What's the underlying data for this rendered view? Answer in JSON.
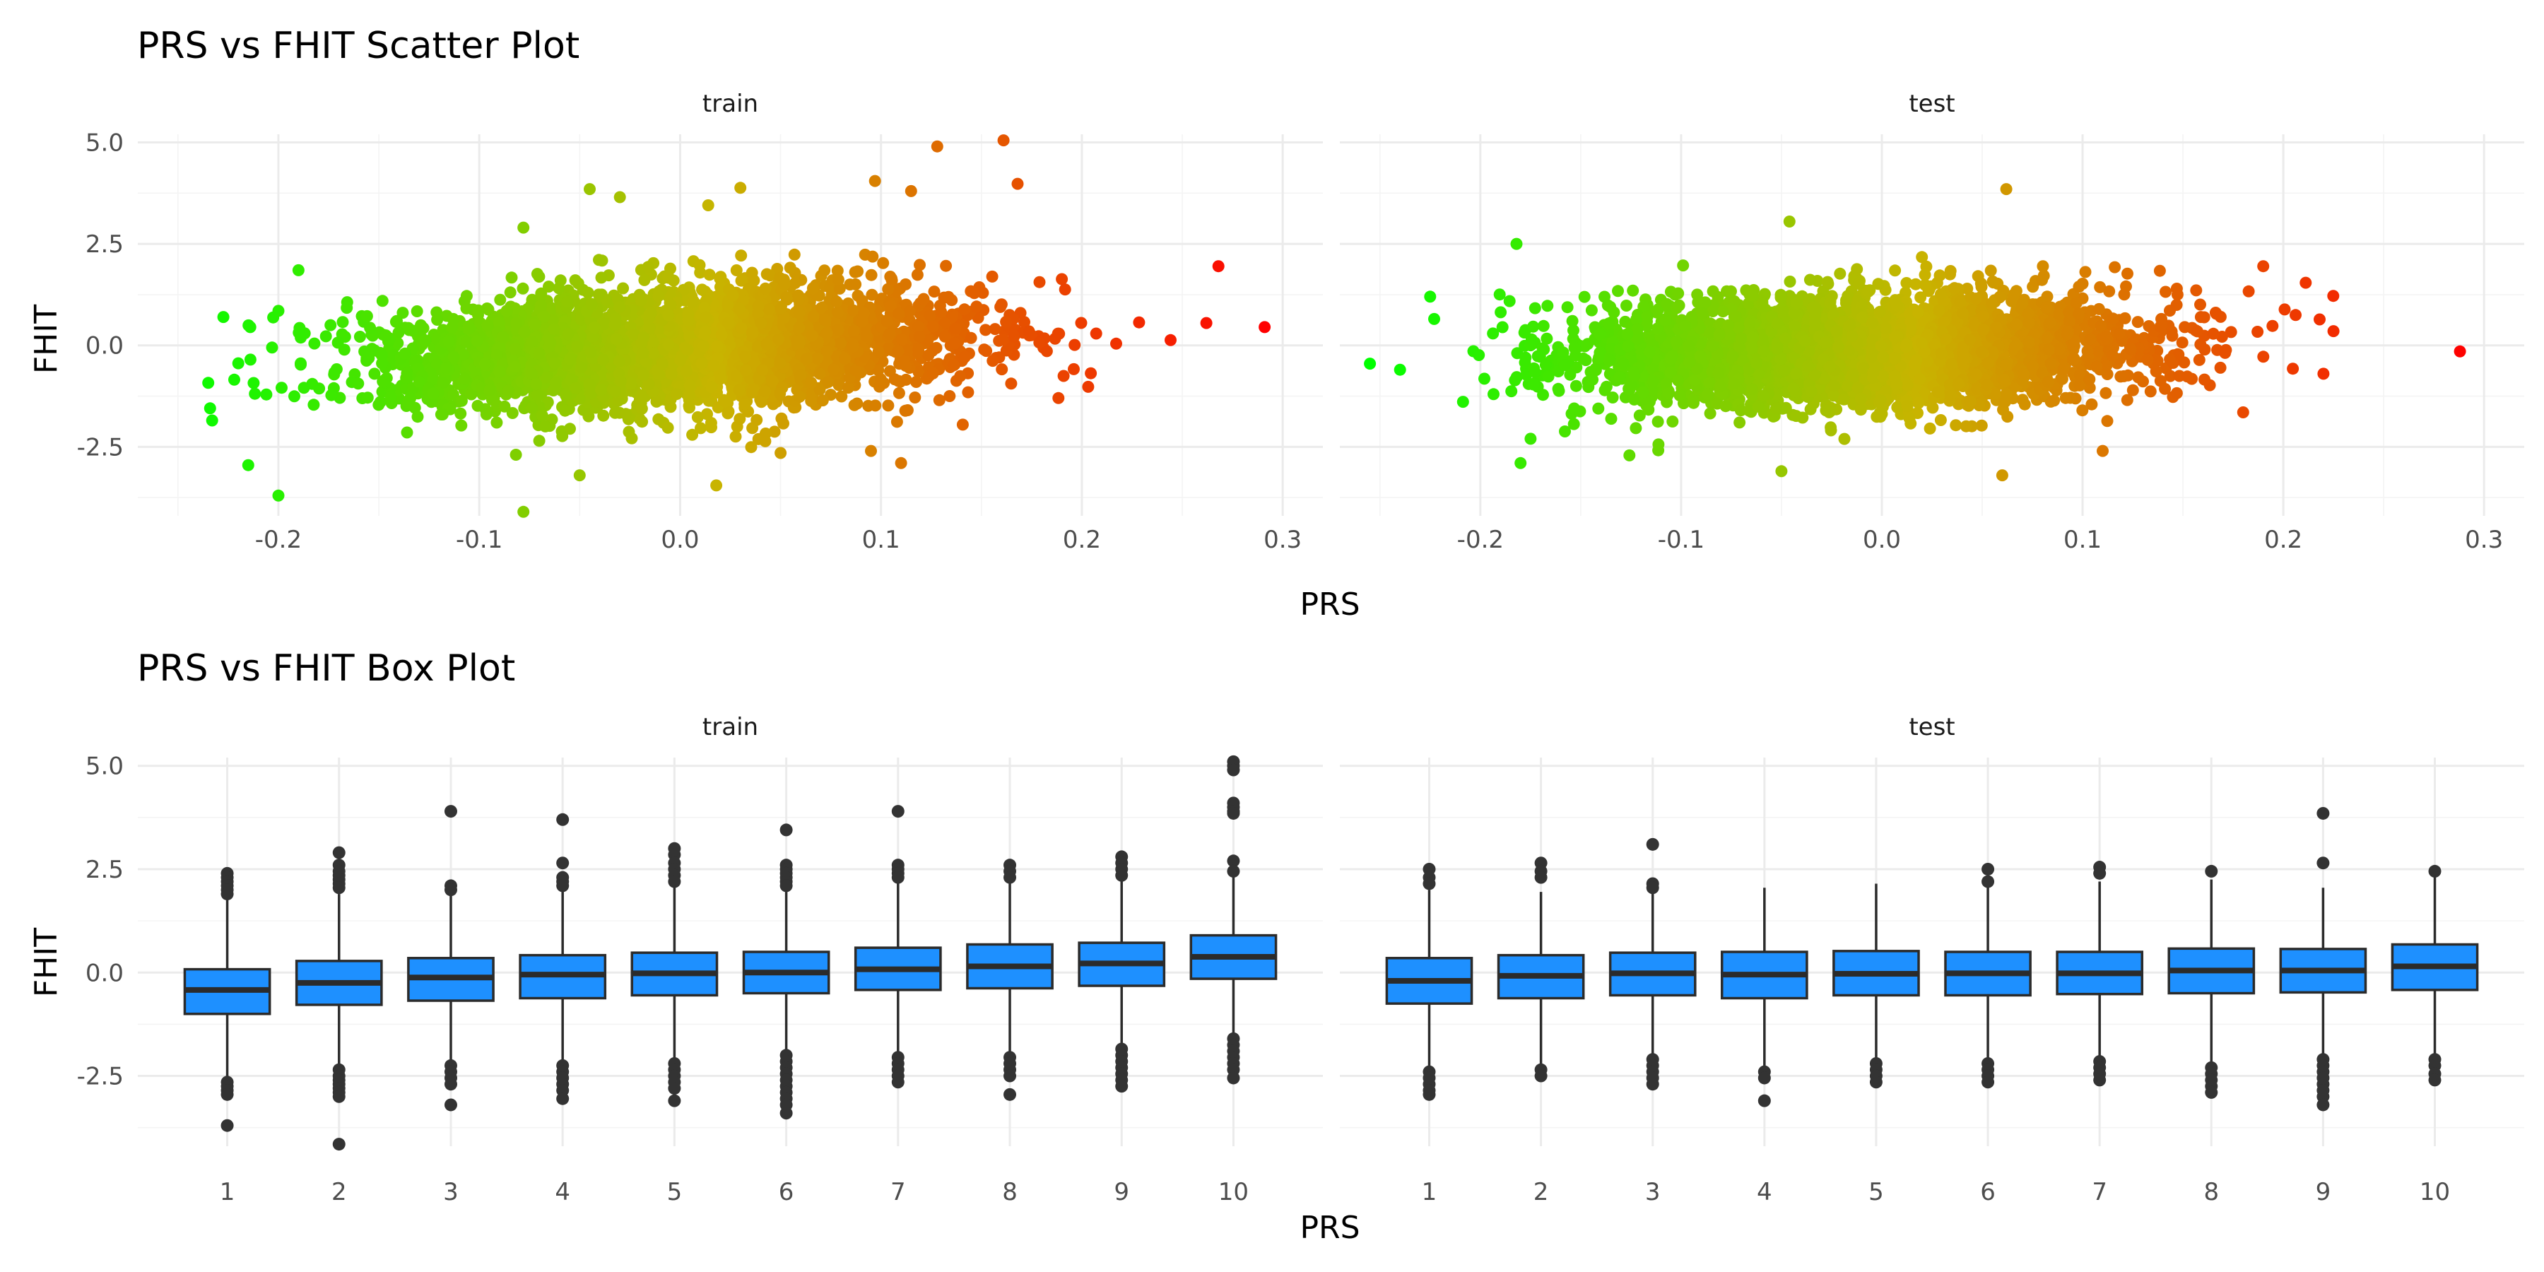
{
  "chart_data": [
    {
      "type": "scatter",
      "title": "PRS vs FHIT Scatter Plot",
      "xlabel": "PRS",
      "ylabel": "FHIT",
      "facets": [
        "train",
        "test"
      ],
      "x_ticks": [
        "-0.2",
        "-0.1",
        "0.0",
        "0.1",
        "0.2",
        "0.3"
      ],
      "y_ticks": [
        "-2.5",
        "0.0",
        "2.5",
        "5.0"
      ],
      "xlim": [
        -0.27,
        0.32
      ],
      "ylim": [
        -4.2,
        5.2
      ],
      "grid": true,
      "color_scale": {
        "low": "#00ff00",
        "mid": "#c8b400",
        "high": "#ff0000",
        "by": "PRS"
      },
      "series": [
        {
          "facet": "train",
          "cloud": {
            "x_mean": -0.005,
            "x_sd": 0.072,
            "y_at_x_min": -0.55,
            "y_at_x_max": 0.45,
            "y_sd": 0.72,
            "x_range": [
              -0.235,
              0.25
            ]
          },
          "points": [
            {
              "x": 0.291,
              "y": 0.45
            },
            {
              "x": 0.268,
              "y": 1.95
            },
            {
              "x": 0.262,
              "y": 0.55
            },
            {
              "x": 0.161,
              "y": 5.05
            },
            {
              "x": 0.128,
              "y": 4.9
            },
            {
              "x": 0.168,
              "y": 3.98
            },
            {
              "x": 0.097,
              "y": 4.05
            },
            {
              "x": 0.115,
              "y": 3.8
            },
            {
              "x": 0.03,
              "y": 3.88
            },
            {
              "x": -0.045,
              "y": 3.85
            },
            {
              "x": -0.03,
              "y": 3.65
            },
            {
              "x": 0.014,
              "y": 3.45
            },
            {
              "x": -0.078,
              "y": 2.9
            },
            {
              "x": -0.19,
              "y": 1.85
            },
            {
              "x": -0.2,
              "y": 0.85
            },
            {
              "x": -0.214,
              "y": 0.45
            },
            {
              "x": -0.234,
              "y": -1.55
            },
            {
              "x": -0.233,
              "y": -1.85
            },
            {
              "x": -0.215,
              "y": -2.95
            },
            {
              "x": -0.2,
              "y": -3.7
            },
            {
              "x": -0.078,
              "y": -4.1
            },
            {
              "x": 0.018,
              "y": -3.45
            },
            {
              "x": -0.05,
              "y": -3.2
            },
            {
              "x": 0.11,
              "y": -2.9
            },
            {
              "x": 0.05,
              "y": -2.65
            },
            {
              "x": 0.095,
              "y": -2.6
            }
          ]
        },
        {
          "facet": "test",
          "cloud": {
            "x_mean": -0.01,
            "x_sd": 0.07,
            "y_at_x_min": -0.35,
            "y_at_x_max": 0.15,
            "y_sd": 0.68,
            "x_range": [
              -0.21,
              0.225
            ]
          },
          "points": [
            {
              "x": 0.288,
              "y": -0.15
            },
            {
              "x": 0.225,
              "y": 0.35
            },
            {
              "x": 0.22,
              "y": -0.7
            },
            {
              "x": -0.255,
              "y": -0.45
            },
            {
              "x": -0.24,
              "y": -0.6
            },
            {
              "x": -0.225,
              "y": 1.2
            },
            {
              "x": -0.223,
              "y": 0.65
            },
            {
              "x": -0.182,
              "y": 2.5
            },
            {
              "x": -0.046,
              "y": 3.05
            },
            {
              "x": 0.062,
              "y": 3.85
            },
            {
              "x": 0.19,
              "y": 1.95
            },
            {
              "x": 0.18,
              "y": -1.65
            },
            {
              "x": -0.18,
              "y": -2.9
            },
            {
              "x": -0.05,
              "y": -3.1
            },
            {
              "x": 0.06,
              "y": -3.2
            },
            {
              "x": 0.11,
              "y": -2.6
            },
            {
              "x": -0.175,
              "y": -2.3
            }
          ]
        }
      ]
    },
    {
      "type": "box",
      "title": "PRS vs FHIT Box Plot",
      "xlabel": "PRS",
      "ylabel": "FHIT",
      "facets": [
        "train",
        "test"
      ],
      "categories": [
        "1",
        "2",
        "3",
        "4",
        "5",
        "6",
        "7",
        "8",
        "9",
        "10"
      ],
      "y_ticks": [
        "-2.5",
        "0.0",
        "2.5",
        "5.0"
      ],
      "ylim": [
        -4.2,
        5.2
      ],
      "grid": true,
      "box_fill": "#1e90ff",
      "box_edge": "#2b2b2b",
      "series": [
        {
          "facet": "train",
          "boxes": [
            {
              "q1": -1.0,
              "median": -0.42,
              "q3": 0.08,
              "lo": -2.55,
              "hi": 1.75,
              "outliers": [
                2.4,
                2.3,
                2.2,
                2.1,
                2.0,
                1.9,
                -2.65,
                -2.75,
                -2.85,
                -2.95,
                -3.7
              ]
            },
            {
              "q1": -0.78,
              "median": -0.25,
              "q3": 0.28,
              "lo": -2.3,
              "hi": 1.9,
              "outliers": [
                2.9,
                2.6,
                2.45,
                2.35,
                2.25,
                2.15,
                2.05,
                -2.35,
                -2.5,
                -2.6,
                -2.7,
                -2.8,
                -2.9,
                -3.0,
                -4.15
              ]
            },
            {
              "q1": -0.68,
              "median": -0.12,
              "q3": 0.35,
              "lo": -2.2,
              "hi": 1.95,
              "outliers": [
                3.9,
                2.1,
                2.0,
                -2.25,
                -2.4,
                -2.55,
                -2.7,
                -3.2
              ]
            },
            {
              "q1": -0.62,
              "median": -0.05,
              "q3": 0.42,
              "lo": -2.2,
              "hi": 2.05,
              "outliers": [
                3.7,
                2.65,
                2.3,
                2.2,
                2.1,
                -2.25,
                -2.4,
                -2.55,
                -2.7,
                -2.85,
                -3.05
              ]
            },
            {
              "q1": -0.55,
              "median": -0.02,
              "q3": 0.48,
              "lo": -2.1,
              "hi": 2.1,
              "outliers": [
                3.0,
                2.85,
                2.65,
                2.5,
                2.35,
                2.2,
                -2.2,
                -2.35,
                -2.5,
                -2.65,
                -2.8,
                -3.1
              ]
            },
            {
              "q1": -0.5,
              "median": 0.0,
              "q3": 0.5,
              "lo": -1.9,
              "hi": 2.0,
              "outliers": [
                3.45,
                2.6,
                2.5,
                2.4,
                2.3,
                2.2,
                2.1,
                -2.0,
                -2.15,
                -2.3,
                -2.45,
                -2.6,
                -2.75,
                -2.9,
                -3.05,
                -3.2,
                -3.4
              ]
            },
            {
              "q1": -0.42,
              "median": 0.08,
              "q3": 0.6,
              "lo": -1.95,
              "hi": 2.15,
              "outliers": [
                3.9,
                2.6,
                2.5,
                2.4,
                2.3,
                -2.05,
                -2.2,
                -2.35,
                -2.5,
                -2.65
              ]
            },
            {
              "q1": -0.38,
              "median": 0.15,
              "q3": 0.68,
              "lo": -1.95,
              "hi": 2.2,
              "outliers": [
                2.6,
                2.45,
                2.3,
                -2.05,
                -2.2,
                -2.35,
                -2.5,
                -2.95
              ]
            },
            {
              "q1": -0.32,
              "median": 0.22,
              "q3": 0.72,
              "lo": -1.8,
              "hi": 2.25,
              "outliers": [
                2.8,
                2.65,
                2.5,
                2.35,
                -1.85,
                -2.0,
                -2.15,
                -2.3,
                -2.45,
                -2.6,
                -2.75
              ]
            },
            {
              "q1": -0.15,
              "median": 0.38,
              "q3": 0.9,
              "lo": -1.55,
              "hi": 2.35,
              "outliers": [
                5.1,
                5.0,
                4.9,
                4.1,
                4.0,
                3.9,
                3.85,
                2.7,
                2.45,
                -1.6,
                -1.75,
                -1.9,
                -2.05,
                -2.2,
                -2.35,
                -2.55
              ]
            }
          ]
        },
        {
          "facet": "test",
          "boxes": [
            {
              "q1": -0.75,
              "median": -0.2,
              "q3": 0.35,
              "lo": -2.3,
              "hi": 2.0,
              "outliers": [
                2.5,
                2.3,
                2.15,
                -2.4,
                -2.55,
                -2.7,
                -2.85,
                -2.95
              ]
            },
            {
              "q1": -0.62,
              "median": -0.08,
              "q3": 0.42,
              "lo": -2.25,
              "hi": 1.95,
              "outliers": [
                2.65,
                2.45,
                2.3,
                -2.35,
                -2.5
              ]
            },
            {
              "q1": -0.55,
              "median": -0.02,
              "q3": 0.48,
              "lo": -2.0,
              "hi": 1.95,
              "outliers": [
                3.1,
                2.15,
                2.05,
                -2.1,
                -2.25,
                -2.4,
                -2.55,
                -2.7
              ]
            },
            {
              "q1": -0.62,
              "median": -0.05,
              "q3": 0.5,
              "lo": -2.3,
              "hi": 2.05,
              "outliers": [
                -2.4,
                -2.55,
                -3.1
              ]
            },
            {
              "q1": -0.55,
              "median": -0.03,
              "q3": 0.52,
              "lo": -2.1,
              "hi": 2.15,
              "outliers": [
                -2.2,
                -2.35,
                -2.5,
                -2.65
              ]
            },
            {
              "q1": -0.55,
              "median": -0.02,
              "q3": 0.5,
              "lo": -2.15,
              "hi": 2.1,
              "outliers": [
                2.5,
                2.2,
                -2.2,
                -2.35,
                -2.5,
                -2.65
              ]
            },
            {
              "q1": -0.52,
              "median": -0.02,
              "q3": 0.5,
              "lo": -2.05,
              "hi": 2.2,
              "outliers": [
                2.55,
                2.4,
                -2.15,
                -2.3,
                -2.45,
                -2.6
              ]
            },
            {
              "q1": -0.5,
              "median": 0.05,
              "q3": 0.58,
              "lo": -2.2,
              "hi": 2.25,
              "outliers": [
                2.45,
                -2.3,
                -2.45,
                -2.6,
                -2.75,
                -2.9
              ]
            },
            {
              "q1": -0.48,
              "median": 0.05,
              "q3": 0.57,
              "lo": -2.0,
              "hi": 2.05,
              "outliers": [
                3.85,
                2.65,
                -2.1,
                -2.25,
                -2.4,
                -2.55,
                -2.7,
                -2.85,
                -3.0,
                -3.2
              ]
            },
            {
              "q1": -0.42,
              "median": 0.15,
              "q3": 0.68,
              "lo": -2.0,
              "hi": 2.35,
              "outliers": [
                2.45,
                -2.1,
                -2.25,
                -2.45,
                -2.6
              ]
            }
          ]
        }
      ]
    }
  ]
}
